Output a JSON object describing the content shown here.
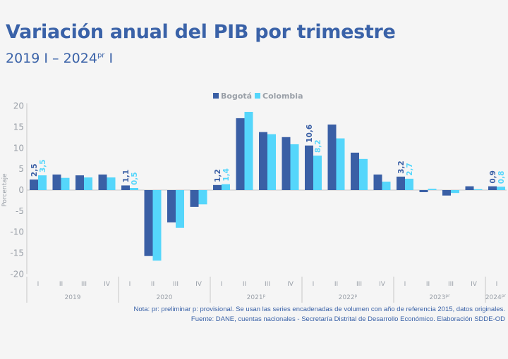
{
  "title": "Variación anual del PIB por trimestre",
  "subtitle": {
    "start": "2019 I – 2024",
    "sup": "pr",
    "end": " I"
  },
  "notes": {
    "line1": "Nota: pr: preliminar p: provisional. Se usan las series encadenadas de volumen con año de referencia 2015, datos originales.",
    "line2": "Fuente: DANE, cuentas nacionales - Secretaría Distrital de Desarrollo Económico. Elaboración SDDE-OD"
  },
  "chart_data": {
    "type": "bar",
    "title": "Variación anual del PIB por trimestre",
    "ylabel": "Porcentaje",
    "ylim": [
      -20,
      20
    ],
    "yticks": [
      20,
      15,
      10,
      5,
      0,
      -5,
      -10,
      -15,
      -20
    ],
    "legend_position": "top-center",
    "grid": false,
    "years": [
      "2019",
      "2020",
      "2021p",
      "2022p",
      "2023pr",
      "2024pr"
    ],
    "categories": [
      "I",
      "II",
      "III",
      "IV",
      "I",
      "II",
      "III",
      "IV",
      "I",
      "II",
      "III",
      "IV",
      "I",
      "II",
      "III",
      "IV",
      "I",
      "II",
      "III",
      "IV",
      "I"
    ],
    "series": [
      {
        "name": "Bogotá",
        "color": "#3a5fa5",
        "values": [
          2.5,
          3.7,
          3.5,
          3.7,
          1.1,
          -15.7,
          -7.7,
          -4.0,
          1.2,
          17.1,
          13.8,
          12.6,
          10.6,
          15.6,
          8.9,
          3.7,
          3.2,
          -0.5,
          -1.3,
          0.9,
          0.9
        ],
        "labels": {
          "0": "2,5",
          "4": "1,1",
          "8": "1,2",
          "12": "10,6",
          "16": "3,2",
          "20": "0,9"
        }
      },
      {
        "name": "Colombia",
        "color": "#55d6fb",
        "values": [
          3.5,
          2.9,
          3.0,
          3.0,
          0.5,
          -16.8,
          -9.0,
          -3.4,
          1.4,
          18.6,
          13.3,
          10.9,
          8.2,
          12.3,
          7.4,
          2.0,
          2.7,
          0.3,
          -0.7,
          0.2,
          0.8
        ],
        "labels": {
          "0": "3,5",
          "4": "0,5",
          "8": "1,4",
          "12": "8,2",
          "16": "2,7",
          "20": "0,8"
        }
      }
    ]
  }
}
